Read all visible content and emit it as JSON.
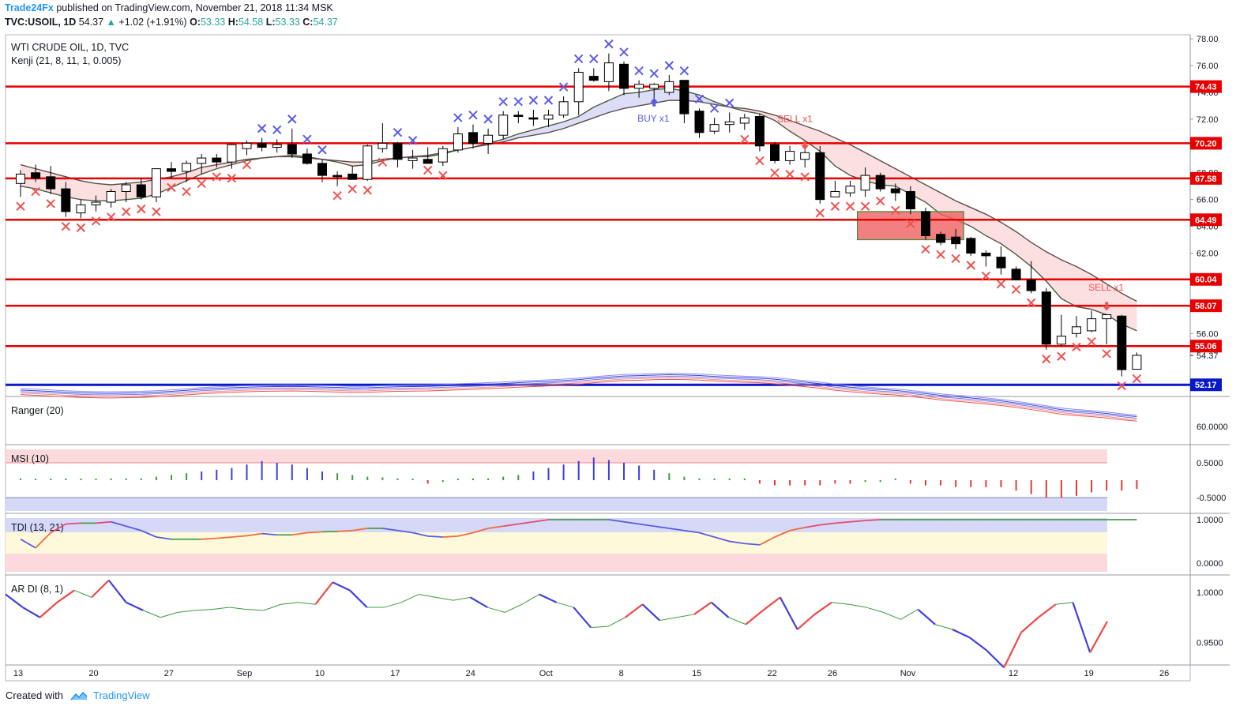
{
  "header": {
    "brand": "Trade24Fx",
    "published": "published on TradingView.com, November 21, 2018 11:34 MSK",
    "symbol": "TVC:USOIL, 1D",
    "last": "54.37",
    "change": "+1.02 (+1.91%)",
    "o_label": "O:",
    "o": "53.33",
    "h_label": "H:",
    "h": "54.58",
    "l_label": "L:",
    "l": "53.33",
    "c_label": "C:",
    "c": "54.37"
  },
  "footer": {
    "created": "Created with",
    "brand": "TradingView"
  },
  "colors": {
    "accent": "#2196f3",
    "level": "#e60000",
    "support": "#0a19c8",
    "sell": "#ef5350",
    "buy": "#5b5be6",
    "cloud_up": "#d6d8f7",
    "cloud_down": "#fcd9dc"
  },
  "chart_data": [
    {
      "type": "candlestick",
      "title": "WTI CRUDE OIL, 1D, TVC",
      "indicator": "Kenji (21, 8, 11, 1, 0.005)",
      "x_ticks": [
        "13",
        "20",
        "27",
        "Sep",
        "10",
        "17",
        "24",
        "Oct",
        "8",
        "15",
        "22",
        "26",
        "Nov",
        "12",
        "19",
        "26"
      ],
      "y_ticks": [
        "78.00",
        "76.00",
        "74.00",
        "72.00",
        "70.00",
        "68.00",
        "66.00",
        "64.00",
        "62.00",
        "60.00",
        "58.00",
        "56.00",
        "54.37"
      ],
      "ylim": [
        51.3,
        78.3
      ],
      "grid": false,
      "horizontal_levels": [
        74.43,
        70.2,
        67.58,
        64.49,
        60.04,
        58.07,
        55.06
      ],
      "support_level": 52.17,
      "level_labels": [
        "74.43",
        "70.20",
        "67.58",
        "64.49",
        "60.04",
        "58.07",
        "55.06",
        "52.17"
      ],
      "annotations": [
        "BUY x1",
        "SELL x1",
        "SELL x1"
      ],
      "ohlc": [
        [
          67.2,
          68.2,
          66.2,
          67.9
        ],
        [
          68.0,
          68.6,
          67.3,
          67.6
        ],
        [
          67.7,
          68.5,
          66.4,
          66.8
        ],
        [
          66.8,
          67.3,
          64.7,
          65.1
        ],
        [
          65.0,
          66.0,
          64.6,
          65.6
        ],
        [
          65.6,
          66.3,
          65.1,
          65.8
        ],
        [
          65.8,
          66.8,
          65.4,
          66.6
        ],
        [
          66.6,
          67.3,
          65.8,
          67.1
        ],
        [
          67.1,
          67.6,
          66.0,
          66.2
        ],
        [
          66.2,
          68.3,
          65.8,
          68.3
        ],
        [
          68.3,
          68.8,
          67.6,
          68.1
        ],
        [
          68.1,
          68.9,
          67.3,
          68.7
        ],
        [
          68.7,
          69.4,
          67.9,
          69.1
        ],
        [
          69.1,
          69.4,
          68.4,
          68.8
        ],
        [
          68.8,
          70.2,
          68.3,
          70.1
        ],
        [
          69.8,
          70.4,
          69.3,
          70.2
        ],
        [
          70.2,
          70.6,
          69.6,
          69.9
        ],
        [
          69.9,
          70.5,
          69.5,
          70.1
        ],
        [
          70.1,
          71.3,
          69.1,
          69.4
        ],
        [
          69.4,
          69.8,
          68.6,
          68.7
        ],
        [
          68.7,
          69.0,
          67.3,
          67.8
        ],
        [
          67.8,
          68.1,
          67.0,
          67.7
        ],
        [
          67.9,
          68.5,
          67.5,
          67.5
        ],
        [
          67.5,
          70.1,
          67.4,
          70.0
        ],
        [
          69.8,
          71.7,
          69.5,
          70.2
        ],
        [
          70.2,
          70.3,
          68.4,
          69.0
        ],
        [
          68.9,
          69.7,
          68.3,
          69.1
        ],
        [
          69.0,
          69.9,
          68.9,
          68.7
        ],
        [
          68.8,
          70.0,
          68.5,
          69.8
        ],
        [
          69.7,
          71.4,
          69.5,
          70.9
        ],
        [
          71.0,
          71.6,
          69.8,
          70.2
        ],
        [
          70.2,
          71.3,
          69.4,
          70.8
        ],
        [
          70.8,
          72.6,
          70.5,
          72.3
        ],
        [
          72.3,
          72.6,
          71.7,
          72.2
        ],
        [
          72.1,
          72.7,
          71.5,
          72.0
        ],
        [
          72.0,
          72.7,
          71.4,
          72.3
        ],
        [
          72.3,
          73.7,
          72.1,
          73.3
        ],
        [
          73.3,
          75.8,
          72.3,
          75.5
        ],
        [
          75.2,
          75.8,
          74.8,
          74.9
        ],
        [
          74.8,
          76.9,
          74.1,
          76.2
        ],
        [
          76.1,
          76.3,
          73.8,
          74.3
        ],
        [
          74.3,
          74.9,
          73.6,
          74.6
        ],
        [
          74.3,
          74.7,
          73.0,
          74.6
        ],
        [
          74.0,
          75.3,
          73.8,
          74.8
        ],
        [
          74.9,
          74.9,
          71.7,
          72.4
        ],
        [
          72.6,
          72.8,
          70.6,
          71.0
        ],
        [
          71.1,
          72.1,
          70.9,
          71.6
        ],
        [
          71.6,
          72.5,
          71.0,
          71.8
        ],
        [
          71.7,
          72.4,
          71.2,
          72.1
        ],
        [
          72.2,
          72.4,
          69.6,
          70.0
        ],
        [
          70.1,
          70.3,
          68.7,
          68.9
        ],
        [
          68.9,
          70.0,
          68.6,
          69.6
        ],
        [
          69.0,
          70.2,
          68.4,
          69.5
        ],
        [
          69.5,
          70.0,
          65.7,
          66.0
        ],
        [
          66.2,
          67.4,
          66.2,
          66.6
        ],
        [
          66.5,
          67.4,
          66.2,
          67.0
        ],
        [
          66.7,
          68.4,
          66.2,
          67.8
        ],
        [
          67.8,
          68.0,
          66.6,
          66.8
        ],
        [
          66.8,
          67.2,
          65.9,
          66.5
        ],
        [
          66.6,
          67.0,
          64.9,
          65.3
        ],
        [
          65.1,
          65.4,
          63.0,
          63.3
        ],
        [
          63.4,
          63.6,
          62.6,
          62.8
        ],
        [
          63.2,
          63.8,
          62.3,
          62.7
        ],
        [
          63.1,
          63.2,
          61.8,
          62.0
        ],
        [
          62.0,
          62.2,
          61.0,
          61.8
        ],
        [
          61.7,
          62.5,
          60.4,
          60.9
        ],
        [
          60.8,
          61.0,
          60.0,
          60.0
        ],
        [
          60.0,
          61.4,
          59.0,
          59.2
        ],
        [
          59.1,
          59.4,
          54.8,
          55.2
        ],
        [
          55.2,
          57.4,
          55.0,
          55.8
        ],
        [
          56.0,
          57.3,
          55.7,
          56.5
        ],
        [
          56.2,
          57.7,
          56.1,
          57.1
        ],
        [
          57.1,
          57.3,
          55.2,
          57.4
        ],
        [
          57.3,
          57.4,
          52.8,
          53.3
        ],
        [
          53.33,
          54.58,
          53.33,
          54.37
        ]
      ],
      "kenji_fast": [
        67.0,
        66.8,
        66.5,
        66.2,
        66.0,
        65.9,
        65.9,
        66.0,
        66.1,
        66.4,
        66.9,
        67.4,
        67.9,
        68.3,
        68.6,
        68.9,
        69.1,
        69.2,
        69.3,
        69.2,
        69.0,
        68.8,
        68.5,
        68.6,
        68.9,
        69.1,
        69.2,
        69.2,
        69.4,
        69.7,
        69.9,
        70.2,
        70.5,
        70.9,
        71.2,
        71.5,
        71.8,
        72.2,
        72.9,
        73.4,
        73.9,
        74.0,
        74.2,
        74.3,
        74.1,
        73.8,
        73.3,
        72.9,
        72.6,
        72.4,
        71.9,
        71.1,
        70.4,
        69.6,
        68.5,
        67.8,
        67.4,
        67.1,
        67.0,
        66.4,
        65.8,
        64.9,
        64.5,
        64.0,
        63.3,
        62.7,
        61.9,
        61.0,
        59.9,
        58.6,
        58.0,
        57.8,
        57.4,
        56.7,
        56.2
      ],
      "kenji_slow": [
        68.6,
        68.3,
        68.0,
        67.7,
        67.4,
        67.2,
        67.1,
        67.2,
        67.3,
        67.5,
        67.7,
        68.0,
        68.4,
        68.6,
        68.8,
        69.0,
        69.1,
        69.2,
        69.2,
        69.1,
        69.0,
        68.9,
        68.8,
        68.8,
        69.0,
        69.1,
        69.2,
        69.3,
        69.5,
        69.7,
        69.9,
        70.1,
        70.3,
        70.6,
        70.8,
        71.0,
        71.3,
        71.7,
        72.1,
        72.5,
        72.8,
        73.0,
        73.2,
        73.4,
        73.4,
        73.3,
        73.1,
        72.9,
        72.8,
        72.6,
        72.3,
        71.9,
        71.5,
        71.1,
        70.6,
        70.1,
        69.5,
        68.9,
        68.3,
        67.7,
        67.1,
        66.5,
        65.9,
        65.4,
        64.9,
        64.3,
        63.6,
        62.8,
        62.1,
        61.5,
        61.0,
        60.4,
        59.7,
        59.0,
        58.4
      ],
      "zone": {
        "from": 63.0,
        "to": 65.1
      }
    },
    {
      "type": "line",
      "title": "Ranger (20)",
      "y_ticks": [
        "60.0000"
      ]
    },
    {
      "type": "histogram",
      "title": "MSI (10)",
      "y_ticks": [
        "0.5000",
        "-0.5000"
      ],
      "values": [
        0.05,
        0,
        0,
        0.05,
        0,
        0,
        0.05,
        0.05,
        0.05,
        0.1,
        0.15,
        0.2,
        0.25,
        0.3,
        0.35,
        0.45,
        0.55,
        0.5,
        0.45,
        0.35,
        0.25,
        0.2,
        0.15,
        0.1,
        0.08,
        0.05,
        0,
        -0.1,
        -0.05,
        0,
        0.05,
        0.05,
        0.1,
        0.15,
        0.25,
        0.35,
        0.45,
        0.55,
        0.65,
        0.58,
        0.5,
        0.42,
        0.3,
        0.2,
        0.1,
        0.05,
        0.05,
        0.05,
        0.05,
        -0.1,
        -0.15,
        -0.15,
        -0.15,
        -0.15,
        -0.1,
        -0.1,
        -0.05,
        -0.05,
        0.05,
        -0.1,
        -0.15,
        -0.15,
        -0.2,
        -0.2,
        -0.2,
        -0.2,
        -0.3,
        -0.4,
        -0.5,
        -0.5,
        -0.45,
        -0.35,
        -0.3,
        -0.3,
        -0.25
      ]
    },
    {
      "type": "line",
      "title": "TDI (13, 21)",
      "y_ticks": [
        "1.0000",
        "0.0000"
      ],
      "values": [
        0.55,
        0.35,
        0.7,
        0.9,
        0.92,
        0.92,
        0.95,
        0.85,
        0.75,
        0.6,
        0.55,
        0.55,
        0.55,
        0.57,
        0.6,
        0.63,
        0.68,
        0.65,
        0.65,
        0.7,
        0.72,
        0.73,
        0.75,
        0.8,
        0.8,
        0.75,
        0.7,
        0.62,
        0.6,
        0.62,
        0.7,
        0.8,
        0.85,
        0.9,
        0.95,
        1.0,
        1.0,
        1.0,
        1.0,
        1.0,
        0.95,
        0.9,
        0.85,
        0.8,
        0.75,
        0.7,
        0.6,
        0.5,
        0.45,
        0.42,
        0.6,
        0.75,
        0.82,
        0.88,
        0.92,
        0.95,
        0.98,
        1.0,
        1.0,
        1.0,
        1.0,
        1.0,
        1.0,
        1.0,
        1.0,
        1.0,
        1.0,
        1.0,
        1.0,
        1.0,
        1.0,
        1.0,
        1.0,
        1.0,
        1.0
      ]
    },
    {
      "type": "line",
      "title": "AR DI (8, 1)",
      "y_ticks": [
        "1.0000",
        "0.9500"
      ],
      "values": [
        0.998,
        0.985,
        0.975,
        0.99,
        1.002,
        0.995,
        1.012,
        0.99,
        0.982,
        0.975,
        0.98,
        0.982,
        0.983,
        0.985,
        0.983,
        0.982,
        0.988,
        0.99,
        0.988,
        1.01,
        1.002,
        0.985,
        0.985,
        0.99,
        0.998,
        0.995,
        0.992,
        0.995,
        0.985,
        0.98,
        0.988,
        0.998,
        0.99,
        0.985,
        0.965,
        0.966,
        0.975,
        0.988,
        0.972,
        0.975,
        0.978,
        0.99,
        0.975,
        0.968,
        0.982,
        0.995,
        0.963,
        0.978,
        0.99,
        0.988,
        0.985,
        0.98,
        0.973,
        0.983,
        0.968,
        0.963,
        0.955,
        0.942,
        0.925,
        0.96,
        0.975,
        0.988,
        0.99,
        0.94,
        0.971
      ]
    }
  ]
}
